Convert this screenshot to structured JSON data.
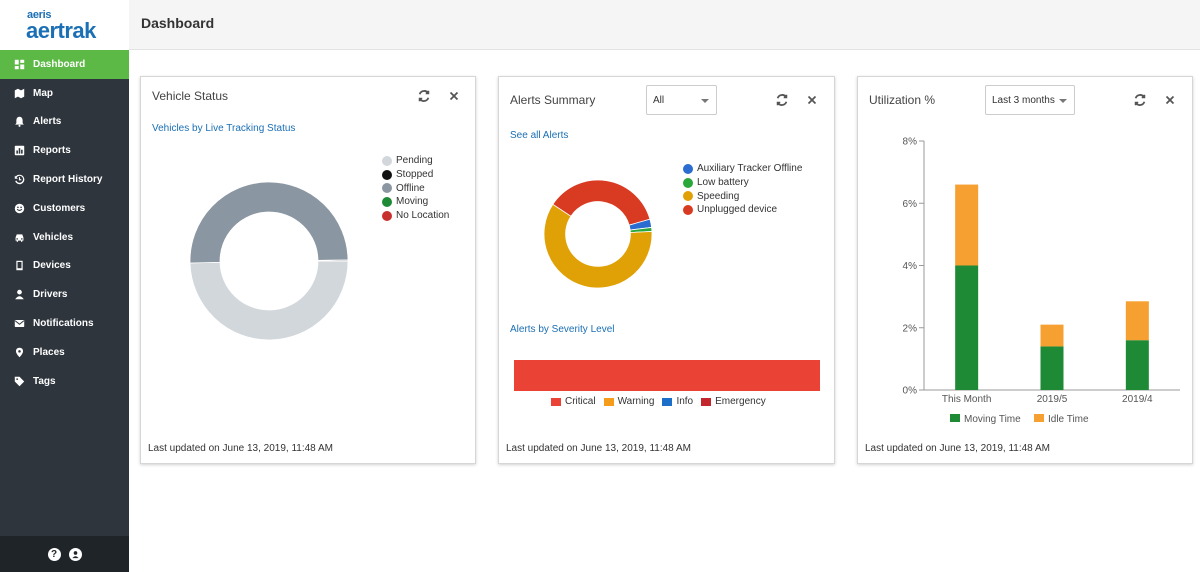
{
  "brand": {
    "company": "aeris",
    "product": "aertrak"
  },
  "page": {
    "title": "Dashboard"
  },
  "sidebar": {
    "items": [
      {
        "label": "Dashboard",
        "icon": "dashboard-icon",
        "active": true
      },
      {
        "label": "Map",
        "icon": "map-icon"
      },
      {
        "label": "Alerts",
        "icon": "bell-icon"
      },
      {
        "label": "Reports",
        "icon": "bar-chart-icon"
      },
      {
        "label": "Report History",
        "icon": "history-icon"
      },
      {
        "label": "Customers",
        "icon": "smile-icon"
      },
      {
        "label": "Vehicles",
        "icon": "car-icon"
      },
      {
        "label": "Devices",
        "icon": "device-icon"
      },
      {
        "label": "Drivers",
        "icon": "user-icon"
      },
      {
        "label": "Notifications",
        "icon": "envelope-icon"
      },
      {
        "label": "Places",
        "icon": "map-marker-icon"
      },
      {
        "label": "Tags",
        "icon": "tag-icon"
      }
    ],
    "footer": {
      "help_icon": "?",
      "account_icon": "user-circle-icon"
    },
    "colors": {
      "background": "#2e353d",
      "active": "#5cb946"
    }
  },
  "vehicle_status": {
    "title": "Vehicle Status",
    "subtitle": "Vehicles by Live Tracking Status",
    "legend": [
      {
        "label": "Pending",
        "color": "#d2d7db"
      },
      {
        "label": "Stopped",
        "color": "#111111"
      },
      {
        "label": "Offline",
        "color": "#8a96a1"
      },
      {
        "label": "Moving",
        "color": "#1e8a36"
      },
      {
        "label": "No Location",
        "color": "#c8302d"
      }
    ],
    "slices": [
      {
        "label": "Pending",
        "value": 0.496,
        "color": "#d2d7db"
      },
      {
        "label": "Offline",
        "value": 0.502,
        "color": "#8a96a1"
      },
      {
        "label": "Stopped",
        "value": 0.002,
        "color": "#111111"
      }
    ],
    "updated": "Last updated on June 13, 2019, 11:48 AM"
  },
  "alerts_summary": {
    "title": "Alerts Summary",
    "filter": "All",
    "link": "See all Alerts",
    "legend": [
      {
        "label": "Auxiliary Tracker Offline",
        "color": "#2a6ccf"
      },
      {
        "label": "Low battery",
        "color": "#2aa73a"
      },
      {
        "label": "Speeding",
        "color": "#e0a107"
      },
      {
        "label": "Unplugged device",
        "color": "#d83a22"
      }
    ],
    "slices": [
      {
        "label": "Auxiliary Tracker Offline",
        "value": 0.025,
        "color": "#2a6ccf"
      },
      {
        "label": "Low battery",
        "value": 0.012,
        "color": "#2aa73a"
      },
      {
        "label": "Speeding",
        "value": 0.6,
        "color": "#e0a107"
      },
      {
        "label": "Unplugged device",
        "value": 0.363,
        "color": "#d83a22"
      }
    ],
    "severity_title": "Alerts by Severity Level",
    "severity_legend": [
      {
        "label": "Critical",
        "color": "#ea4335"
      },
      {
        "label": "Warning",
        "color": "#f59c1a"
      },
      {
        "label": "Info",
        "color": "#1c6fc9"
      },
      {
        "label": "Emergency",
        "color": "#c1272d"
      }
    ],
    "severity_values": [
      {
        "label": "Critical",
        "value": 1.0
      }
    ],
    "updated": "Last updated on June 13, 2019, 11:48 AM"
  },
  "utilization": {
    "title": "Utilization %",
    "filter": "Last 3 months",
    "updated": "Last updated on June 13, 2019, 11:48 AM"
  },
  "chart_data": {
    "type": "bar",
    "categories": [
      "This Month",
      "2019/5",
      "2019/4"
    ],
    "series": [
      {
        "name": "Moving Time",
        "color": "#1e8a36",
        "values": [
          4.0,
          1.4,
          1.6
        ]
      },
      {
        "name": "Idle Time",
        "color": "#f5a030",
        "values": [
          2.6,
          0.7,
          1.25
        ]
      }
    ],
    "stacked": true,
    "ylim": [
      0,
      8
    ],
    "yticks": [
      "0%",
      "2%",
      "4%",
      "6%",
      "8%"
    ],
    "legend": "bottom"
  }
}
